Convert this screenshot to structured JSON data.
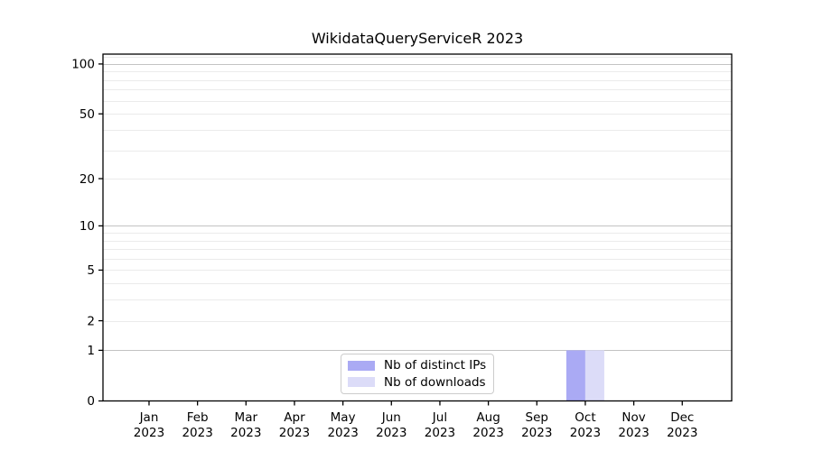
{
  "title": "WikidataQueryServiceR 2023",
  "chart_data": {
    "type": "bar",
    "title": "WikidataQueryServiceR 2023",
    "x_categories": [
      "Jan",
      "Feb",
      "Mar",
      "Apr",
      "May",
      "Jun",
      "Jul",
      "Aug",
      "Sep",
      "Oct",
      "Nov",
      "Dec"
    ],
    "x_year": "2023",
    "series": [
      {
        "name": "Nb of distinct IPs",
        "color": "#aaaaf4",
        "values": [
          0,
          0,
          0,
          0,
          0,
          0,
          0,
          0,
          0,
          1,
          0,
          0
        ]
      },
      {
        "name": "Nb of downloads",
        "color": "#dcdcf8",
        "values": [
          0,
          0,
          0,
          0,
          0,
          0,
          0,
          0,
          0,
          1,
          0,
          0
        ]
      }
    ],
    "yscale": "log1p",
    "ylim": [
      0,
      114.6
    ],
    "ytick_labels": [
      0,
      1,
      2,
      5,
      10,
      20,
      50,
      100
    ],
    "grid_major": [
      1,
      10,
      100
    ],
    "grid_minor": [
      2,
      3,
      4,
      5,
      6,
      7,
      8,
      9,
      20,
      30,
      40,
      50,
      60,
      70,
      80,
      90,
      110
    ],
    "legend": {
      "entries": [
        "Nb of distinct IPs",
        "Nb of downloads"
      ],
      "position": "inside-bottom-center"
    },
    "colors": {
      "grid_major": "#c3c3c3",
      "grid_minor": "#ebebeb",
      "axis": "#000000",
      "text": "#000000",
      "background": "#ffffff"
    }
  }
}
